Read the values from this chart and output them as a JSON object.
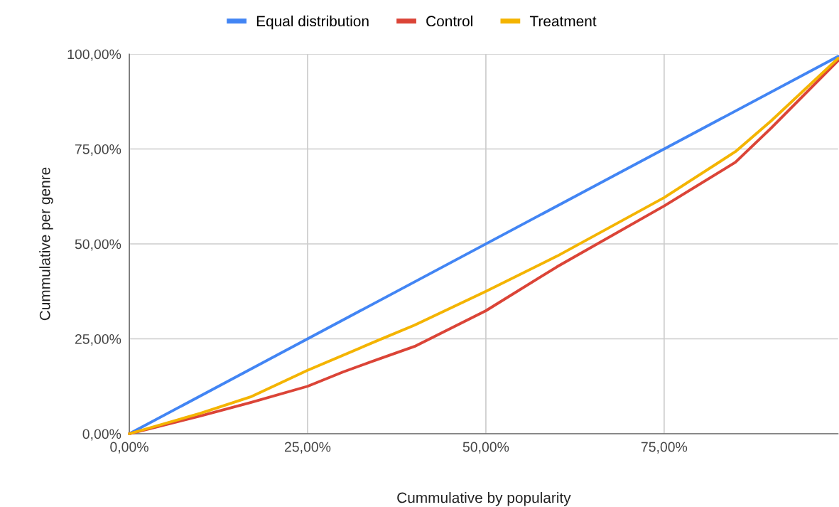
{
  "chart_data": {
    "type": "line",
    "xlabel": "Cummulative by popularity",
    "ylabel": "Cummulative per genre",
    "xlim": [
      0,
      99.4
    ],
    "ylim": [
      0,
      100
    ],
    "xticks": [
      {
        "value": 0,
        "label": "0,00%"
      },
      {
        "value": 25,
        "label": "25,00%"
      },
      {
        "value": 50,
        "label": "50,00%"
      },
      {
        "value": 75,
        "label": "75,00%"
      }
    ],
    "yticks": [
      {
        "value": 0,
        "label": "0,00%"
      },
      {
        "value": 25,
        "label": "25,00%"
      },
      {
        "value": 50,
        "label": "50,00%"
      },
      {
        "value": 75,
        "label": "75,00%"
      },
      {
        "value": 100,
        "label": "100,00%"
      }
    ],
    "grid": true,
    "legend": "top",
    "marker": "none",
    "line_style": "solid",
    "series": [
      {
        "name": "Equal distribution",
        "color": "#4285f4",
        "x": [
          0,
          99.4
        ],
        "values": [
          0,
          99.4
        ]
      },
      {
        "name": "Control",
        "color": "#db4437",
        "x": [
          0,
          10,
          17,
          25,
          30,
          35,
          40,
          50,
          60,
          75,
          85,
          90,
          99.4
        ],
        "values": [
          0,
          4.7,
          8.2,
          12.5,
          16.3,
          19.7,
          23,
          32.4,
          44,
          60,
          71.5,
          80.5,
          98.3
        ]
      },
      {
        "name": "Treatment",
        "color": "#f4b400",
        "x": [
          0,
          10,
          17,
          25,
          35,
          40,
          50,
          60,
          75,
          85,
          90,
          99.4
        ],
        "values": [
          0,
          5.4,
          9.7,
          16.7,
          24.7,
          28.6,
          37.5,
          46.8,
          62.2,
          74.3,
          82.4,
          98.9
        ]
      }
    ]
  }
}
